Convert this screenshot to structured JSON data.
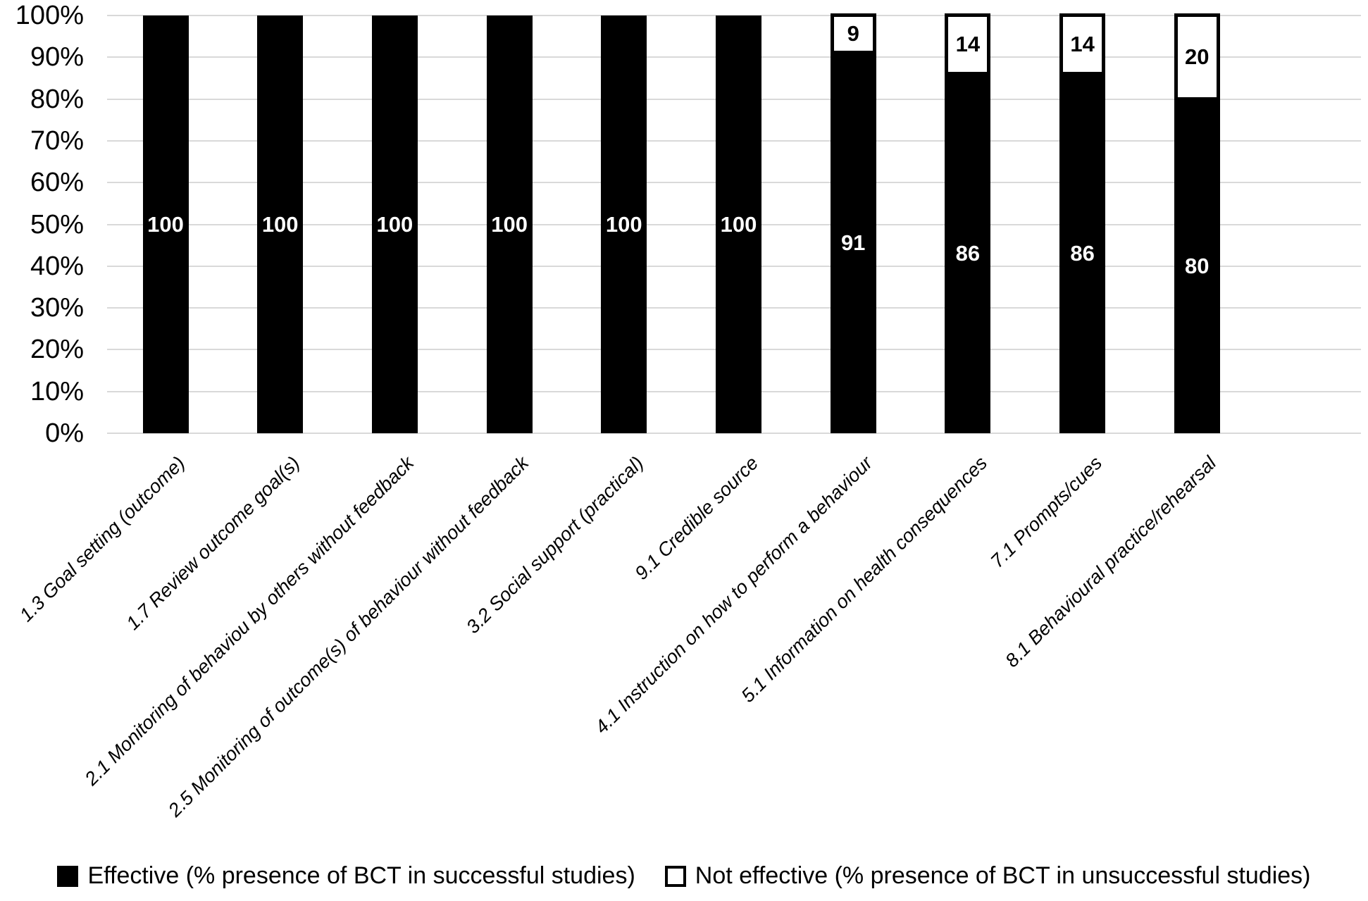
{
  "chart_data": {
    "type": "bar",
    "stacked": true,
    "title": "",
    "xlabel": "",
    "ylabel": "",
    "ylim": [
      0,
      100
    ],
    "grid": true,
    "gridline_color": "#d9d9d9",
    "legend_position": "bottom",
    "y_ticks": [
      "100%",
      "90%",
      "80%",
      "70%",
      "60%",
      "50%",
      "40%",
      "30%",
      "20%",
      "10%",
      "0%"
    ],
    "categories": [
      "1.3 Goal setting (outcome)",
      "1.7 Review outcome goal(s)",
      "2.1 Monitoring of behaviou by others without feedback",
      "2.5 Monitoring of outcome(s) of behaviour without feedback",
      "3.2 Social support (practical)",
      "9.1 Credible source",
      "4.1 Instruction on how to perform a behaviour",
      "5.1 Information on health consequences",
      "7.1 Prompts/cues",
      "8.1 Behavioural practice/rehearsal"
    ],
    "series": [
      {
        "name": "Effective (% presence of BCT in successful studies)",
        "color": "#000000",
        "label_color": "#ffffff",
        "values": [
          100,
          100,
          100,
          100,
          100,
          100,
          91,
          86,
          86,
          80
        ]
      },
      {
        "name": "Not effective (% presence of BCT in unsuccessful studies)",
        "color": "#ffffff",
        "label_color": "#000000",
        "values": [
          0,
          0,
          0,
          0,
          0,
          0,
          9,
          14,
          14,
          20
        ]
      }
    ]
  }
}
